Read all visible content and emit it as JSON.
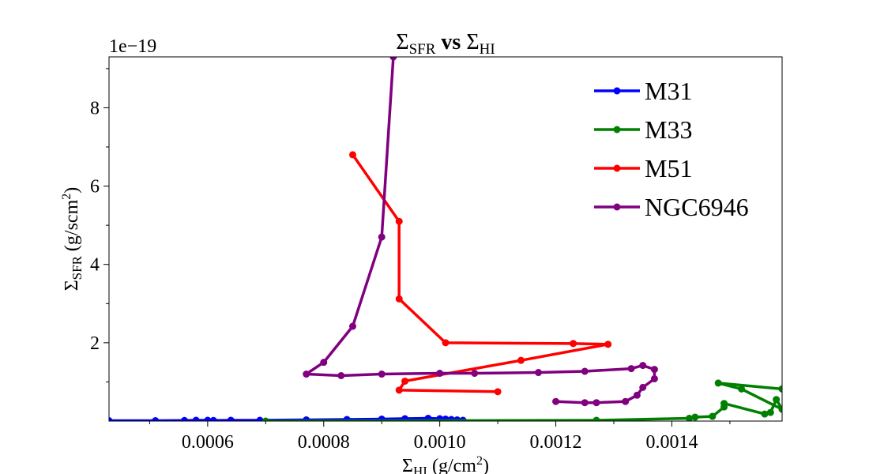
{
  "chart_data": {
    "type": "line",
    "title": {
      "base": "Σ",
      "sub": "SFR",
      "mid": " vs ",
      "base2": "Σ",
      "sub2": "HI"
    },
    "xlabel": {
      "base": "Σ",
      "sub": "HI",
      "rest": " (g/cm",
      "sup": "2",
      "end": ")"
    },
    "ylabel": {
      "base": "Σ",
      "sub": "SFR",
      "rest": " (g/scm",
      "sup": "2",
      "end": ")"
    },
    "y_offset_text": "1e−19",
    "xlim": [
      0.00043,
      0.00159
    ],
    "ylim": [
      0,
      9.3
    ],
    "x_ticks": [
      {
        "value": 0.0006,
        "label": "0.0006"
      },
      {
        "value": 0.0008,
        "label": "0.0008"
      },
      {
        "value": 0.001,
        "label": "0.0010"
      },
      {
        "value": 0.0012,
        "label": "0.0012"
      },
      {
        "value": 0.0014,
        "label": "0.0014"
      }
    ],
    "y_ticks": [
      {
        "value": 2,
        "label": "2"
      },
      {
        "value": 4,
        "label": "4"
      },
      {
        "value": 6,
        "label": "6"
      },
      {
        "value": 8,
        "label": "8"
      }
    ],
    "grid": false,
    "legend_position": "top-right",
    "series": [
      {
        "name": "M31",
        "color": "#0000ff",
        "x": [
          0.00043,
          0.00051,
          0.00056,
          0.00058,
          0.0006,
          0.00061,
          0.00064,
          0.00069,
          0.00077,
          0.00084,
          0.0009,
          0.00094,
          0.00098,
          0.001,
          0.00101,
          0.00102,
          0.00103,
          0.00104
        ],
        "y": [
          0.01,
          0.01,
          0.015,
          0.02,
          0.02,
          0.015,
          0.02,
          0.02,
          0.03,
          0.04,
          0.05,
          0.06,
          0.07,
          0.06,
          0.05,
          0.04,
          0.03,
          0.02
        ]
      },
      {
        "name": "M33",
        "color": "#008000",
        "x": [
          0.0007,
          0.00127,
          0.00143,
          0.00144,
          0.00147,
          0.00149,
          0.00149,
          0.00156,
          0.00157,
          0.00158,
          0.00159,
          0.00152,
          0.00148,
          0.00159,
          0.00159
        ],
        "y": [
          0.0,
          0.02,
          0.07,
          0.1,
          0.12,
          0.36,
          0.45,
          0.18,
          0.22,
          0.55,
          0.3,
          0.82,
          0.97,
          0.82,
          0.82
        ]
      },
      {
        "name": "M51",
        "color": "#ff0000",
        "x": [
          0.00085,
          0.00093,
          0.00093,
          0.00101,
          0.00123,
          0.00129,
          0.00114,
          0.00094,
          0.00093,
          0.0011
        ],
        "y": [
          6.8,
          5.1,
          3.12,
          2.0,
          1.98,
          1.96,
          1.55,
          1.02,
          0.79,
          0.75
        ]
      },
      {
        "name": "NGC6946",
        "color": "#800080",
        "x": [
          0.00092,
          0.0009,
          0.00085,
          0.0008,
          0.00077,
          0.00083,
          0.0009,
          0.001,
          0.00106,
          0.00117,
          0.00125,
          0.00133,
          0.00135,
          0.00137,
          0.00137,
          0.00135,
          0.00134,
          0.00132,
          0.00127,
          0.00125,
          0.0012
        ],
        "y": [
          9.3,
          4.7,
          2.42,
          1.5,
          1.2,
          1.16,
          1.2,
          1.22,
          1.22,
          1.24,
          1.27,
          1.34,
          1.42,
          1.32,
          1.08,
          0.86,
          0.66,
          0.5,
          0.47,
          0.47,
          0.5
        ]
      }
    ]
  }
}
